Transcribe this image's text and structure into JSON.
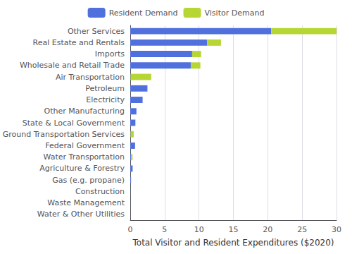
{
  "chart_data": {
    "type": "bar",
    "orientation": "horizontal",
    "stacked": true,
    "categories": [
      "Other Services",
      "Real Estate and Rentals",
      "Imports",
      "Wholesale and Retail Trade",
      "Air Transportation",
      "Petroleum",
      "Electricity",
      "Other Manufacturing",
      "State & Local Government",
      "Ground Transportation Services",
      "Federal Government",
      "Water Transportation",
      "Agriculture & Forestry",
      "Gas (e.g. propane)",
      "Construction",
      "Waste Management",
      "Water & Other Utilities"
    ],
    "series": [
      {
        "name": "Resident Demand",
        "values": [
          20.5,
          11.2,
          9.0,
          8.8,
          0.05,
          2.5,
          1.8,
          0.9,
          0.75,
          0.05,
          0.7,
          0.15,
          0.35,
          0.12,
          0.02,
          0.01,
          0.01
        ]
      },
      {
        "name": "Visitor Demand",
        "values": [
          9.5,
          2.0,
          1.3,
          1.4,
          3.0,
          0.0,
          0.0,
          0.0,
          0.0,
          0.45,
          0.0,
          0.18,
          0.0,
          0.0,
          0.0,
          0.0,
          0.0
        ]
      }
    ],
    "xlabel": "Total Visitor and Resident Expenditures ($2020)",
    "xlim": [
      0,
      30
    ],
    "xticks": [
      0,
      5,
      10,
      15,
      20,
      25,
      30
    ],
    "grid": true,
    "legend": "top"
  }
}
